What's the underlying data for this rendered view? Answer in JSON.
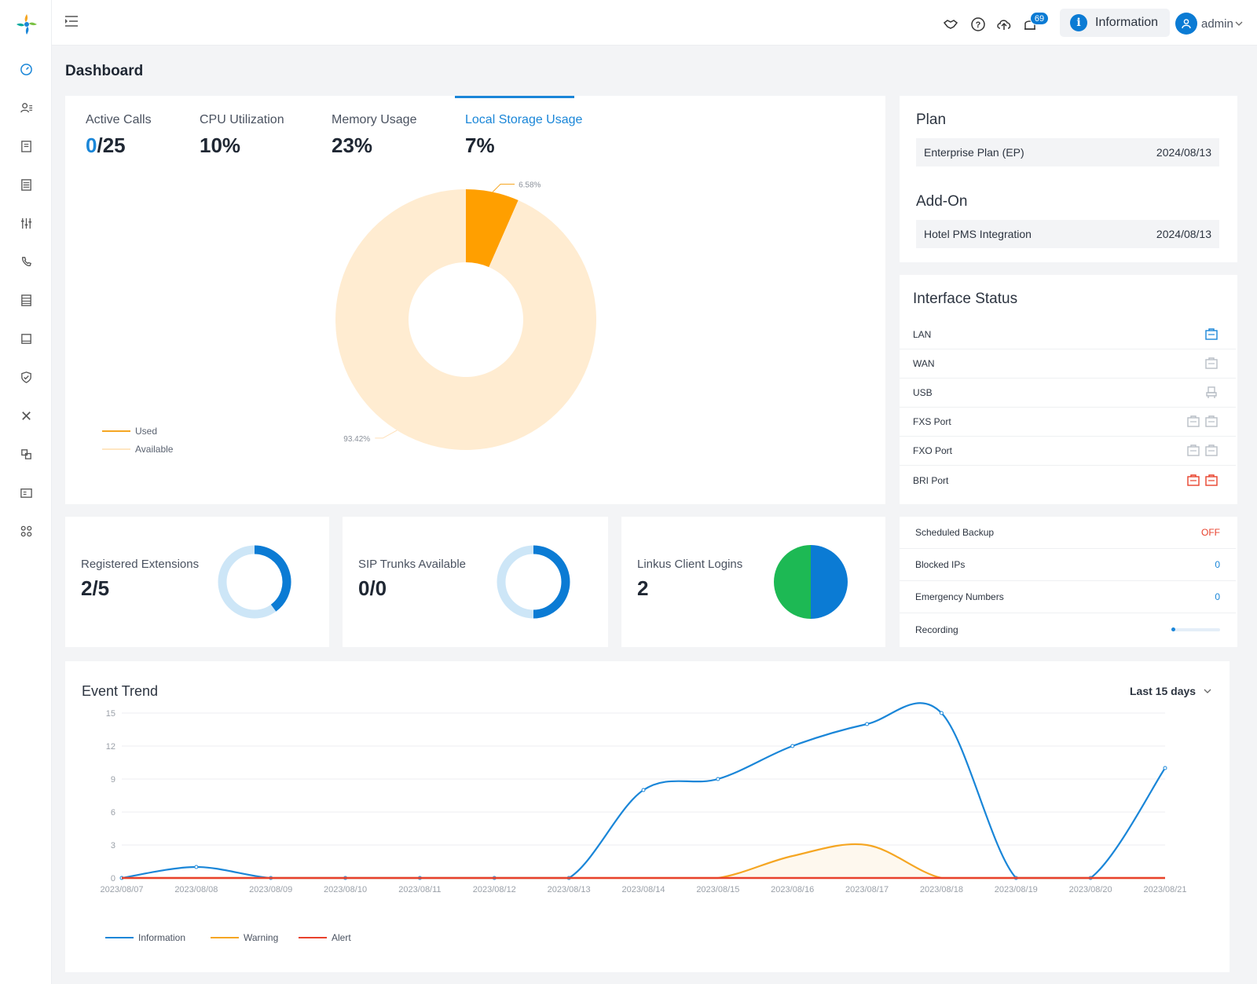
{
  "topbar": {
    "notification_count": "69",
    "info_button": "Information",
    "user_name": "admin"
  },
  "page": {
    "title": "Dashboard"
  },
  "metrics": [
    {
      "label": "Active Calls",
      "value_accent": "0",
      "value_rest": "/25"
    },
    {
      "label": "CPU Utilization",
      "value": "10%"
    },
    {
      "label": "Memory Usage",
      "value": "23%"
    },
    {
      "label": "Local Storage Usage",
      "value": "7%"
    }
  ],
  "storage_chart": {
    "used_pct_label": "6.58%",
    "available_pct_label": "93.42%",
    "legend_used": "Used",
    "legend_available": "Available"
  },
  "plan": {
    "title": "Plan",
    "name": "Enterprise Plan (EP)",
    "date": "2024/08/13",
    "addon_title": "Add-On",
    "addon_name": "Hotel PMS Integration",
    "addon_date": "2024/08/13"
  },
  "interface": {
    "title": "Interface Status",
    "rows": [
      {
        "name": "LAN"
      },
      {
        "name": "WAN"
      },
      {
        "name": "USB"
      },
      {
        "name": "FXS Port"
      },
      {
        "name": "FXO Port"
      },
      {
        "name": "BRI Port"
      }
    ]
  },
  "stats": [
    {
      "label": "Registered Extensions",
      "value": "2/5"
    },
    {
      "label": "SIP Trunks Available",
      "value": "0/0"
    },
    {
      "label": "Linkus Client Logins",
      "value": "2"
    }
  ],
  "status": {
    "scheduled_backup_label": "Scheduled Backup",
    "scheduled_backup_value": "OFF",
    "blocked_ips_label": "Blocked IPs",
    "blocked_ips_value": "0",
    "emergency_label": "Emergency Numbers",
    "emergency_value": "0",
    "recording_label": "Recording"
  },
  "trend": {
    "title": "Event Trend",
    "range": "Last 15 days"
  },
  "colors": {
    "accent": "#0b7bd4",
    "information": "#1a86d8",
    "warning": "#f5a623",
    "alert": "#e8412c",
    "used": "#ff9f00",
    "available": "#ffecd1"
  },
  "chart_data": {
    "type": "line",
    "title": "Event Trend",
    "x": [
      "2023/08/07",
      "2023/08/08",
      "2023/08/09",
      "2023/08/10",
      "2023/08/11",
      "2023/08/12",
      "2023/08/13",
      "2023/08/14",
      "2023/08/15",
      "2023/08/16",
      "2023/08/17",
      "2023/08/18",
      "2023/08/19",
      "2023/08/20",
      "2023/08/21"
    ],
    "ylim": [
      0,
      15
    ],
    "yticks": [
      0,
      3,
      6,
      9,
      12,
      15
    ],
    "series": [
      {
        "name": "Information",
        "color": "#1a86d8",
        "values": [
          0,
          1,
          0,
          0,
          0,
          0,
          0,
          8,
          9,
          12,
          14,
          15,
          0,
          0,
          10
        ]
      },
      {
        "name": "Warning",
        "color": "#f5a623",
        "values": [
          0,
          0,
          0,
          0,
          0,
          0,
          0,
          0,
          0,
          2,
          3,
          0,
          0,
          0,
          0
        ]
      },
      {
        "name": "Alert",
        "color": "#e8412c",
        "values": [
          0,
          0,
          0,
          0,
          0,
          0,
          0,
          0,
          0,
          0,
          0,
          0,
          0,
          0,
          0
        ]
      }
    ],
    "grid": true,
    "legend": "bottom-left"
  },
  "pie_data": {
    "type": "pie",
    "slices": [
      {
        "name": "Used",
        "value": 6.58
      },
      {
        "name": "Available",
        "value": 93.42
      }
    ]
  }
}
